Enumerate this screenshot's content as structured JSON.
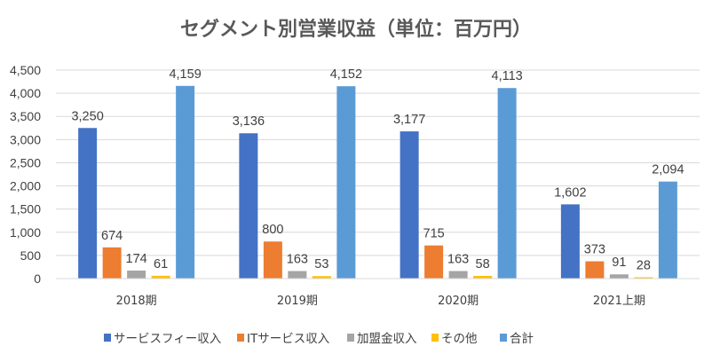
{
  "chart_data": {
    "type": "bar",
    "title": "セグメント別営業収益（単位：百万円）",
    "xlabel": "",
    "ylabel": "",
    "ylim": [
      0,
      4500
    ],
    "yticks": [
      0,
      500,
      1000,
      1500,
      2000,
      2500,
      3000,
      3500,
      4000,
      4500
    ],
    "ytick_labels": [
      "0",
      "500",
      "1,000",
      "1,500",
      "2,000",
      "2,500",
      "3,000",
      "3,500",
      "4,000",
      "4,500"
    ],
    "grid": true,
    "legend_position": "bottom",
    "categories": [
      "2018期",
      "2019期",
      "2020期",
      "2021上期"
    ],
    "series": [
      {
        "name": "サービスフィー収入",
        "color": "#4472C4",
        "values": [
          3250,
          3136,
          3177,
          1602
        ],
        "labels": [
          "3,250",
          "3,136",
          "3,177",
          "1,602"
        ]
      },
      {
        "name": "ITサービス収入",
        "color": "#ED7D31",
        "values": [
          674,
          800,
          715,
          373
        ],
        "labels": [
          "674",
          "800",
          "715",
          "373"
        ]
      },
      {
        "name": "加盟金収入",
        "color": "#A5A5A5",
        "values": [
          174,
          163,
          163,
          91
        ],
        "labels": [
          "174",
          "163",
          "163",
          "91"
        ]
      },
      {
        "name": "その他",
        "color": "#FFC000",
        "values": [
          61,
          53,
          58,
          28
        ],
        "labels": [
          "61",
          "53",
          "58",
          "28"
        ]
      },
      {
        "name": "合計",
        "color": "#5B9BD5",
        "values": [
          4159,
          4152,
          4113,
          2094
        ],
        "labels": [
          "4,159",
          "4,152",
          "4,113",
          "2,094"
        ]
      }
    ]
  }
}
